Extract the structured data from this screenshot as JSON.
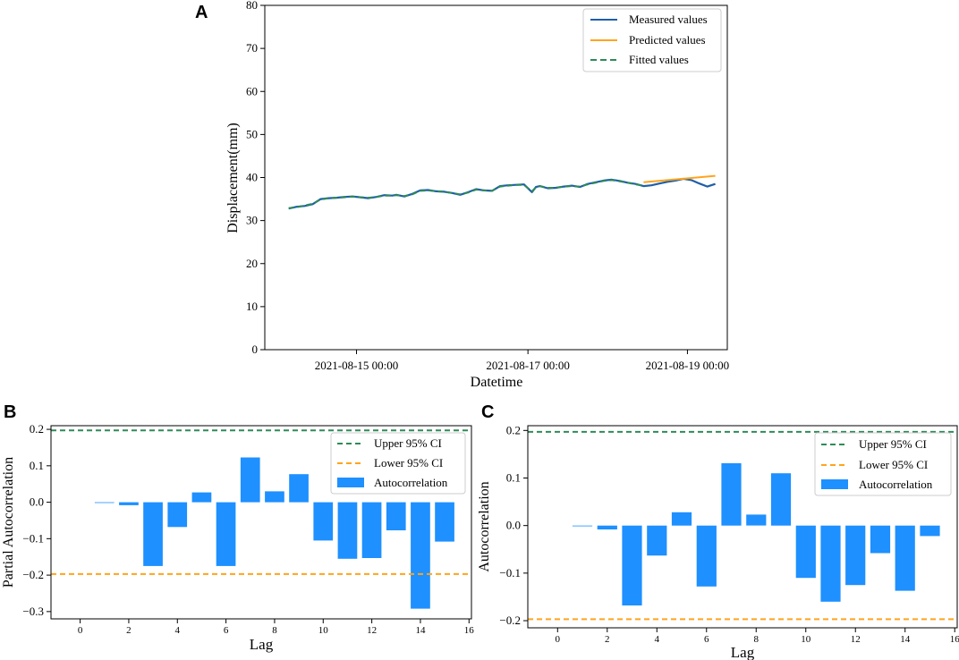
{
  "panel_labels": {
    "A": "A",
    "B": "B",
    "C": "C"
  },
  "colors": {
    "measured": "#1f5fa8",
    "predicted": "#ffa41b",
    "fitted": "#2e8b57",
    "bar": "#1e90ff",
    "upper_ci": "#2e8b57",
    "lower_ci": "#ffa41b"
  },
  "chart_data": [
    {
      "id": "A",
      "type": "line",
      "title": "",
      "xlabel": "Datetime",
      "ylabel": "Displacement(mm)",
      "xlim": [
        -0.3,
        5.5
      ],
      "ylim": [
        0,
        80
      ],
      "xticks": [
        0.85,
        3.0,
        5.0
      ],
      "xtick_labels": [
        "2021-08-15 00:00",
        "2021-08-17 00:00",
        "2021-08-19 00:00"
      ],
      "yticks": [
        0,
        10,
        20,
        30,
        40,
        50,
        60,
        70,
        80
      ],
      "legend": {
        "position": "top-right",
        "entries": [
          "Measured values",
          "Predicted values",
          "Fitted values"
        ]
      },
      "series": [
        {
          "name": "Measured values",
          "style": "solid",
          "x": [
            0.0,
            0.1,
            0.2,
            0.3,
            0.4,
            0.5,
            0.6,
            0.7,
            0.8,
            0.9,
            1.0,
            1.1,
            1.2,
            1.3,
            1.35,
            1.45,
            1.55,
            1.65,
            1.75,
            1.85,
            1.95,
            2.05,
            2.15,
            2.25,
            2.35,
            2.45,
            2.55,
            2.65,
            2.75,
            2.85,
            2.95,
            3.05,
            3.1,
            3.15,
            3.25,
            3.35,
            3.45,
            3.55,
            3.65,
            3.75,
            3.85,
            3.95,
            4.05,
            4.15,
            4.25,
            4.35,
            4.45,
            4.55,
            4.65,
            4.75,
            4.85,
            4.95,
            5.05,
            5.15,
            5.25,
            5.35
          ],
          "y": [
            32.8,
            33.2,
            33.4,
            33.8,
            35.0,
            35.2,
            35.3,
            35.5,
            35.6,
            35.4,
            35.2,
            35.5,
            35.9,
            35.8,
            36.0,
            35.6,
            36.2,
            37.0,
            37.1,
            36.8,
            36.7,
            36.4,
            36.0,
            36.6,
            37.3,
            37.0,
            36.9,
            38.0,
            38.2,
            38.3,
            38.4,
            36.6,
            37.8,
            38.0,
            37.5,
            37.6,
            37.9,
            38.1,
            37.8,
            38.5,
            38.9,
            39.3,
            39.5,
            39.2,
            38.8,
            38.5,
            38.0,
            38.2,
            38.6,
            39.0,
            39.3,
            39.7,
            39.4,
            38.6,
            37.9,
            38.5
          ]
        },
        {
          "name": "Fitted values",
          "style": "dashed",
          "x": [
            0.0,
            0.1,
            0.2,
            0.3,
            0.4,
            0.5,
            0.6,
            0.7,
            0.8,
            0.9,
            1.0,
            1.1,
            1.2,
            1.3,
            1.35,
            1.45,
            1.55,
            1.65,
            1.75,
            1.85,
            1.95,
            2.05,
            2.15,
            2.25,
            2.35,
            2.45,
            2.55,
            2.65,
            2.75,
            2.85,
            2.95,
            3.05,
            3.1,
            3.15,
            3.25,
            3.35,
            3.45,
            3.55,
            3.65,
            3.75,
            3.85,
            3.95,
            4.05,
            4.15,
            4.25,
            4.35,
            4.45
          ],
          "y": [
            32.9,
            33.1,
            33.5,
            33.9,
            34.9,
            35.2,
            35.3,
            35.4,
            35.6,
            35.4,
            35.3,
            35.5,
            35.8,
            35.8,
            35.9,
            35.7,
            36.1,
            36.9,
            37.0,
            36.8,
            36.7,
            36.4,
            36.1,
            36.5,
            37.2,
            37.0,
            36.9,
            37.9,
            38.1,
            38.3,
            38.3,
            36.8,
            37.7,
            38.0,
            37.6,
            37.6,
            37.9,
            38.0,
            37.9,
            38.4,
            38.8,
            39.2,
            39.4,
            39.1,
            38.8,
            38.4,
            38.1
          ]
        },
        {
          "name": "Predicted values",
          "style": "solid",
          "x": [
            4.45,
            5.35
          ],
          "y": [
            38.9,
            40.4
          ]
        }
      ]
    },
    {
      "id": "B",
      "type": "bar",
      "title": "",
      "xlabel": "Lag",
      "ylabel": "Partial Autocorrelation",
      "xlim": [
        -1.2,
        16.1
      ],
      "ylim": [
        -0.32,
        0.21
      ],
      "xticks": [
        0,
        2,
        4,
        6,
        8,
        10,
        12,
        14,
        16
      ],
      "yticks": [
        -0.3,
        -0.2,
        -0.1,
        0.0,
        0.1,
        0.2
      ],
      "ytick_labels": [
        "−0.3",
        "−0.2",
        "−0.1",
        "0.0",
        "0.1",
        "0.2"
      ],
      "upper_ci": 0.197,
      "lower_ci": -0.197,
      "legend": {
        "position": "top-right",
        "entries": [
          "Upper 95% CI",
          "Lower 95% CI",
          "Autocorrelation"
        ]
      },
      "categories": [
        1,
        2,
        3,
        4,
        5,
        6,
        7,
        8,
        9,
        10,
        11,
        12,
        13,
        14,
        15
      ],
      "values": [
        0.0,
        -0.008,
        -0.175,
        -0.068,
        0.027,
        -0.175,
        0.123,
        0.03,
        0.077,
        -0.105,
        -0.155,
        -0.153,
        -0.077,
        -0.292,
        -0.108
      ]
    },
    {
      "id": "C",
      "type": "bar",
      "title": "",
      "xlabel": "Lag",
      "ylabel": "Autocorrelation",
      "xlim": [
        -1.2,
        16.1
      ],
      "ylim": [
        -0.215,
        0.21
      ],
      "xticks": [
        0,
        2,
        4,
        6,
        8,
        10,
        12,
        14,
        16
      ],
      "yticks": [
        -0.2,
        -0.1,
        0.0,
        0.1,
        0.2
      ],
      "ytick_labels": [
        "−0.2",
        "−0.1",
        "0.0",
        "0.1",
        "0.2"
      ],
      "upper_ci": 0.197,
      "lower_ci": -0.197,
      "legend": {
        "position": "top-right",
        "entries": [
          "Upper 95% CI",
          "Lower 95% CI",
          "Autocorrelation"
        ]
      },
      "categories": [
        1,
        2,
        3,
        4,
        5,
        6,
        7,
        8,
        9,
        10,
        11,
        12,
        13,
        14,
        15
      ],
      "values": [
        0.0,
        -0.008,
        -0.168,
        -0.063,
        0.028,
        -0.128,
        0.131,
        0.023,
        0.11,
        -0.11,
        -0.16,
        -0.125,
        -0.058,
        -0.137,
        -0.022
      ]
    }
  ]
}
